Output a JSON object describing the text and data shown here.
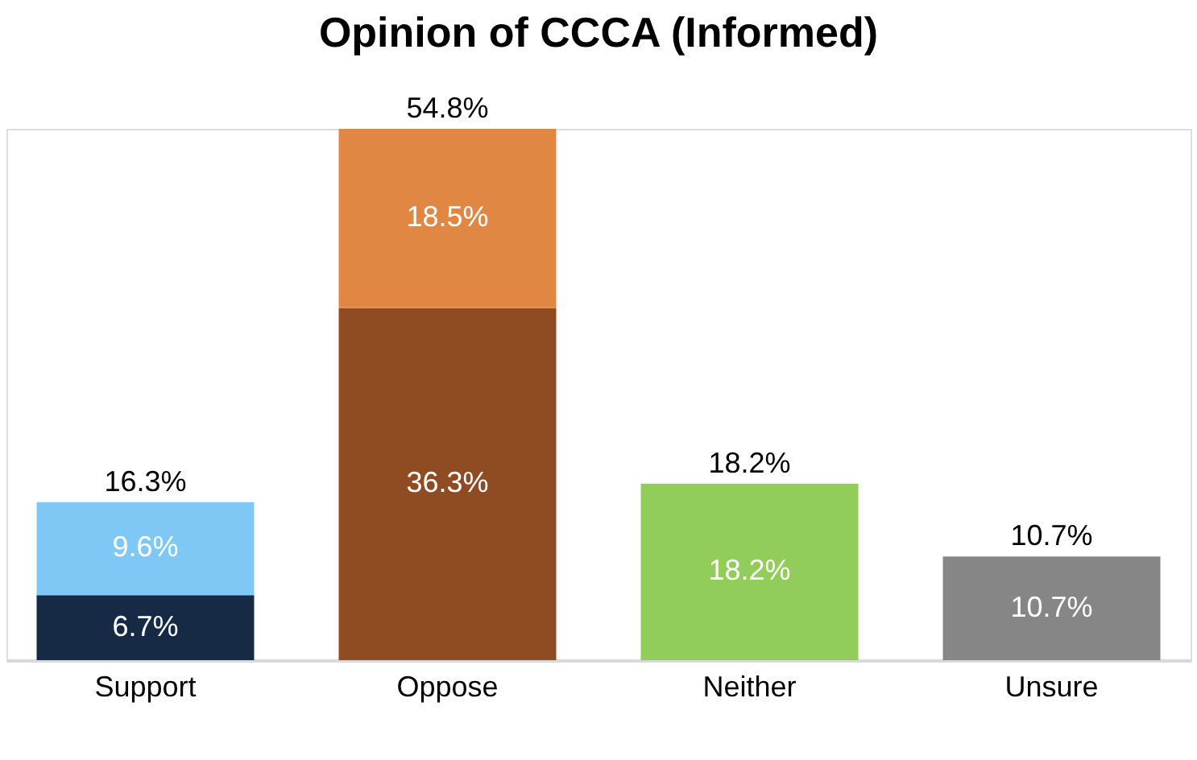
{
  "chart_data": {
    "type": "bar",
    "title": "Opinion of CCCA (Informed)",
    "stacked": true,
    "categories": [
      "Support",
      "Oppose",
      "Neither",
      "Unsure"
    ],
    "series": [
      {
        "colors": [
          "#172a45",
          "#8f4c22",
          "#92cd5b",
          "#868686"
        ],
        "values": [
          6.7,
          36.3,
          18.2,
          10.7
        ],
        "value_labels": [
          "6.7%",
          "36.3%",
          "18.2%",
          "10.7%"
        ]
      },
      {
        "colors": [
          "#7fc8f5",
          "#e08843",
          "#92cd5b",
          "#868686"
        ],
        "values": [
          9.6,
          18.5,
          null,
          null
        ],
        "value_labels": [
          "9.6%",
          "18.5%",
          null,
          null
        ]
      }
    ],
    "totals": [
      "16.3%",
      "54.8%",
      "18.2%",
      "10.7%"
    ],
    "tick_labels": "x",
    "grid": false
  }
}
